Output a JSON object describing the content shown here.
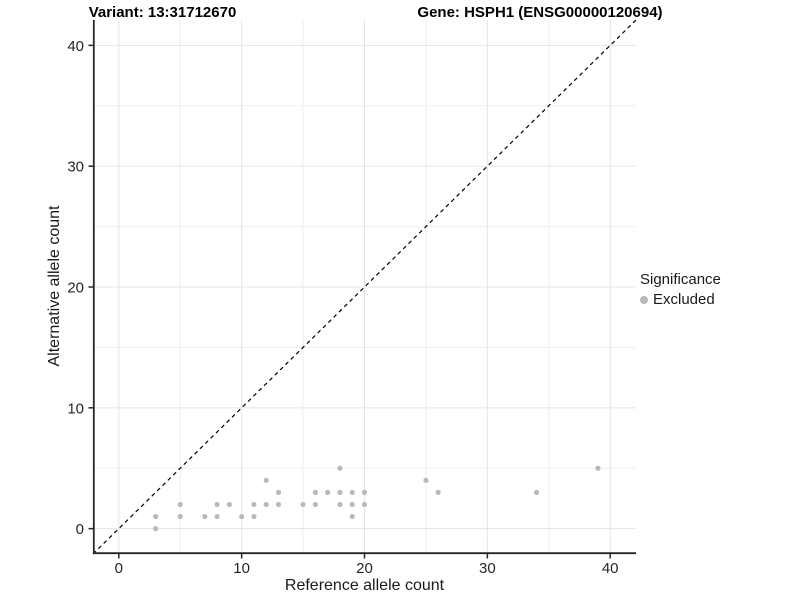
{
  "header": {
    "title_left": "Variant: 13:31712670",
    "title_right": "Gene: HSPH1 (ENSG00000120694)"
  },
  "chart_data": {
    "type": "scatter",
    "title": "Variant: 13:31712670 / Gene: HSPH1 (ENSG00000120694)",
    "xlabel": "Reference allele count",
    "ylabel": "Alternative allele count",
    "xlim": [
      -2.1,
      42.1
    ],
    "ylim": [
      -2.1,
      42.1
    ],
    "x_major_ticks": [
      0,
      10,
      20,
      30,
      40
    ],
    "y_major_ticks": [
      0,
      10,
      20,
      30,
      40
    ],
    "x_minor_ticks": [
      5,
      15,
      25,
      35
    ],
    "y_minor_ticks": [
      5,
      15,
      25,
      35
    ],
    "x_tick_labels": [
      "0",
      "10",
      "20",
      "30",
      "40"
    ],
    "y_tick_labels": [
      "0",
      "10",
      "20",
      "30",
      "40"
    ],
    "grid": "on",
    "identity_line": {
      "style": "dashed",
      "color": "#000000",
      "from": [
        -2.1,
        -2.1
      ],
      "to": [
        42.1,
        42.1
      ]
    },
    "series": [
      {
        "name": "Excluded",
        "color": "#b9b9b9",
        "points": [
          [
            3,
            0
          ],
          [
            3,
            1
          ],
          [
            5,
            1
          ],
          [
            5,
            2
          ],
          [
            7,
            1
          ],
          [
            8,
            1
          ],
          [
            8,
            2
          ],
          [
            9,
            2
          ],
          [
            10,
            1
          ],
          [
            11,
            1
          ],
          [
            11,
            2
          ],
          [
            12,
            2
          ],
          [
            12,
            4
          ],
          [
            13,
            2
          ],
          [
            13,
            3
          ],
          [
            15,
            2
          ],
          [
            16,
            2
          ],
          [
            16,
            3
          ],
          [
            17,
            3
          ],
          [
            18,
            2
          ],
          [
            18,
            3
          ],
          [
            18,
            5
          ],
          [
            19,
            1
          ],
          [
            19,
            2
          ],
          [
            19,
            3
          ],
          [
            20,
            2
          ],
          [
            20,
            3
          ],
          [
            25,
            4
          ],
          [
            26,
            3
          ],
          [
            34,
            3
          ],
          [
            39,
            5
          ]
        ]
      }
    ],
    "legend": {
      "position": "right",
      "title": "Significance",
      "entries": [
        {
          "label": "Excluded",
          "color": "#b9b9b9"
        }
      ]
    }
  },
  "style_colors": {
    "grid_major": "#e4e4e4",
    "grid_minor": "#f0f0f0",
    "spine": "#262626",
    "tick": "#262626",
    "tick_label": "#262626"
  }
}
